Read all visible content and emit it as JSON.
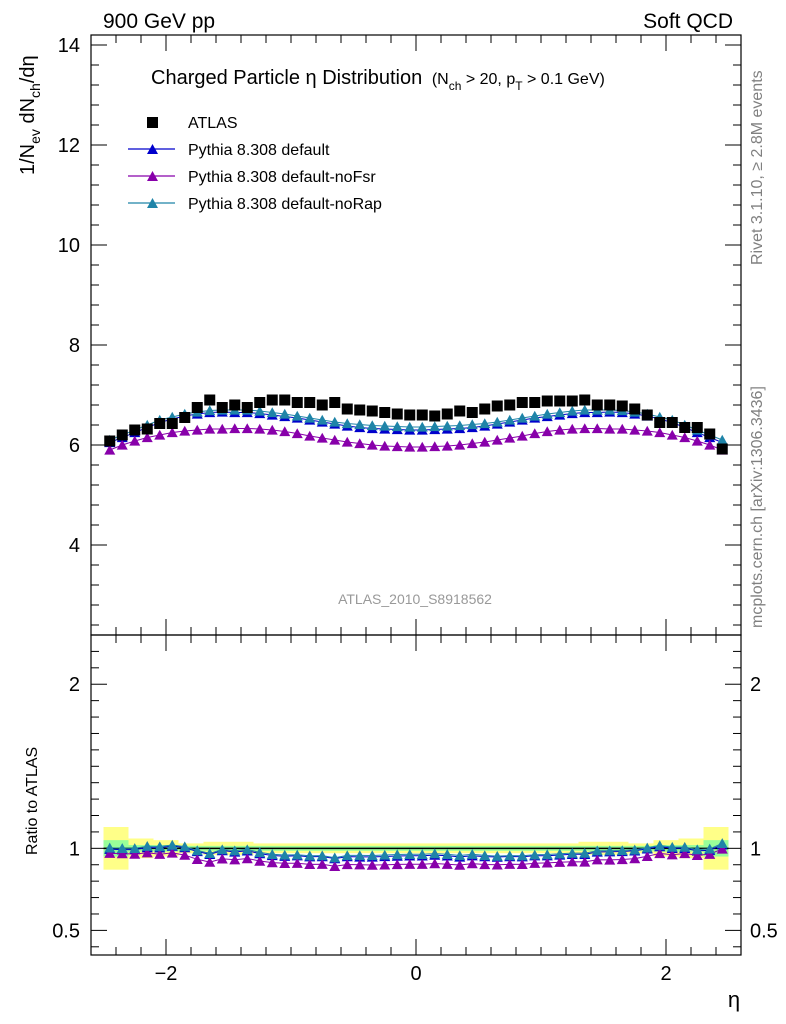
{
  "header": {
    "left": "900 GeV pp",
    "right": "Soft QCD"
  },
  "side_labels": {
    "rivet": "Rivet 3.1.10, ≥ 2.8M events",
    "mcplots": "mcplots.cern.ch [arXiv:1306.3436]"
  },
  "chart_data": {
    "type": "scatter",
    "title": "Charged Particle η Distribution",
    "title_suffix": {
      "open": "(N",
      "sub1": "ch",
      "middle": " > 20, p",
      "sub2": "T",
      "close": " > 0.1 GeV)"
    },
    "analysis_label": "ATLAS_2010_S8918562",
    "xlabel": "η",
    "ylabel": {
      "part1": "1/N",
      "sub1": "ev",
      "part2": " dN",
      "sub2": "ch",
      "part3": "/dη"
    },
    "ratio_ylabel": "Ratio to ATLAS",
    "xlim": [
      -2.6,
      2.6
    ],
    "ylim": [
      2.2,
      14.2
    ],
    "ratio_ylim": [
      0.35,
      2.3
    ],
    "x_ticks": [
      -2,
      0,
      2
    ],
    "x_tick_labels": [
      "−2",
      "0",
      "2"
    ],
    "y_ticks": [
      4,
      6,
      8,
      10,
      12,
      14
    ],
    "ratio_y_ticks": [
      0.5,
      1,
      2
    ],
    "ratio_y_tick_labels": [
      "0.5",
      "1",
      "2"
    ],
    "eta": [
      -2.45,
      -2.35,
      -2.25,
      -2.15,
      -2.05,
      -1.95,
      -1.85,
      -1.75,
      -1.65,
      -1.55,
      -1.45,
      -1.35,
      -1.25,
      -1.15,
      -1.05,
      -0.95,
      -0.85,
      -0.75,
      -0.65,
      -0.55,
      -0.45,
      -0.35,
      -0.25,
      -0.15,
      -0.05,
      0.05,
      0.15,
      0.25,
      0.35,
      0.45,
      0.55,
      0.65,
      0.75,
      0.85,
      0.95,
      1.05,
      1.15,
      1.25,
      1.35,
      1.45,
      1.55,
      1.65,
      1.75,
      1.85,
      1.95,
      2.05,
      2.15,
      2.25,
      2.35,
      2.45
    ],
    "series": [
      {
        "name": "ATLAS",
        "marker": "square",
        "color": "#000000",
        "values": [
          6.08,
          6.2,
          6.3,
          6.32,
          6.43,
          6.43,
          6.55,
          6.75,
          6.9,
          6.75,
          6.8,
          6.75,
          6.85,
          6.9,
          6.9,
          6.85,
          6.85,
          6.8,
          6.85,
          6.72,
          6.7,
          6.68,
          6.65,
          6.62,
          6.6,
          6.6,
          6.58,
          6.62,
          6.68,
          6.65,
          6.72,
          6.78,
          6.8,
          6.85,
          6.85,
          6.88,
          6.88,
          6.88,
          6.9,
          6.8,
          6.8,
          6.78,
          6.72,
          6.6,
          6.45,
          6.45,
          6.35,
          6.35,
          6.22,
          5.92
        ]
      },
      {
        "name": "Pythia 8.308 default",
        "marker": "triangle",
        "color": "#0000cc",
        "values": [
          6.05,
          6.15,
          6.25,
          6.35,
          6.45,
          6.52,
          6.58,
          6.62,
          6.65,
          6.66,
          6.65,
          6.65,
          6.63,
          6.6,
          6.57,
          6.54,
          6.5,
          6.46,
          6.42,
          6.38,
          6.35,
          6.33,
          6.32,
          6.31,
          6.3,
          6.3,
          6.31,
          6.32,
          6.33,
          6.35,
          6.38,
          6.42,
          6.46,
          6.5,
          6.54,
          6.57,
          6.6,
          6.63,
          6.65,
          6.65,
          6.66,
          6.65,
          6.62,
          6.58,
          6.52,
          6.45,
          6.35,
          6.25,
          6.15,
          6.05
        ]
      },
      {
        "name": "Pythia 8.308 default-noFsr",
        "marker": "triangle",
        "color": "#8800aa",
        "values": [
          5.9,
          6.0,
          6.08,
          6.15,
          6.2,
          6.25,
          6.28,
          6.3,
          6.32,
          6.32,
          6.33,
          6.33,
          6.32,
          6.3,
          6.27,
          6.23,
          6.18,
          6.14,
          6.1,
          6.06,
          6.03,
          6.0,
          5.98,
          5.97,
          5.96,
          5.96,
          5.97,
          5.98,
          6.0,
          6.03,
          6.06,
          6.1,
          6.14,
          6.18,
          6.23,
          6.27,
          6.3,
          6.32,
          6.33,
          6.33,
          6.32,
          6.32,
          6.3,
          6.28,
          6.25,
          6.2,
          6.15,
          6.08,
          6.0,
          5.9
        ]
      },
      {
        "name": "Pythia 8.308 default-noRap",
        "marker": "triangle",
        "color": "#1f84a8",
        "values": [
          6.1,
          6.2,
          6.3,
          6.4,
          6.5,
          6.56,
          6.62,
          6.66,
          6.69,
          6.7,
          6.7,
          6.7,
          6.68,
          6.65,
          6.62,
          6.58,
          6.54,
          6.5,
          6.46,
          6.43,
          6.41,
          6.39,
          6.38,
          6.37,
          6.36,
          6.36,
          6.37,
          6.38,
          6.39,
          6.41,
          6.43,
          6.46,
          6.5,
          6.54,
          6.58,
          6.62,
          6.65,
          6.68,
          6.7,
          6.7,
          6.7,
          6.69,
          6.66,
          6.62,
          6.56,
          6.5,
          6.4,
          6.3,
          6.2,
          6.1
        ]
      }
    ],
    "ratio_bands": [
      {
        "x": [
          -2.5,
          -2.3
        ],
        "inner": 0.05,
        "outer": 0.13
      },
      {
        "x": [
          -2.3,
          -2.1
        ],
        "inner": 0.02,
        "outer": 0.06
      },
      {
        "x": [
          -2.1,
          -1.9
        ],
        "inner": 0.02,
        "outer": 0.05
      },
      {
        "x": [
          -1.9,
          -1.7
        ],
        "inner": 0.015,
        "outer": 0.03
      },
      {
        "x": [
          -1.7,
          -1.3
        ],
        "inner": 0.015,
        "outer": 0.04
      },
      {
        "x": [
          -1.3,
          1.3
        ],
        "inner": 0.015,
        "outer": 0.03
      },
      {
        "x": [
          1.3,
          1.7
        ],
        "inner": 0.015,
        "outer": 0.04
      },
      {
        "x": [
          1.7,
          1.9
        ],
        "inner": 0.015,
        "outer": 0.03
      },
      {
        "x": [
          1.9,
          2.1
        ],
        "inner": 0.02,
        "outer": 0.05
      },
      {
        "x": [
          2.1,
          2.3
        ],
        "inner": 0.02,
        "outer": 0.06
      },
      {
        "x": [
          2.3,
          2.5
        ],
        "inner": 0.05,
        "outer": 0.13
      }
    ],
    "band_colors": {
      "inner": "#99ff99",
      "outer": "#ffff88"
    }
  }
}
